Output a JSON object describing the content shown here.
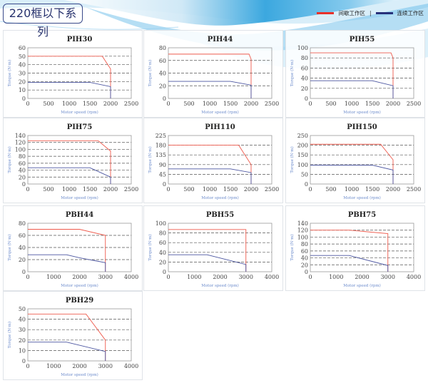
{
  "header": {
    "title": "220框以下系列"
  },
  "legend": {
    "intermittent": {
      "label": "间歇工作区",
      "color": "#e8312a"
    },
    "separator": "|",
    "continuous": {
      "label": "连续工作区",
      "color": "#27307a"
    }
  },
  "colors": {
    "intermittent_line": "#ee5a4c",
    "continuous_line": "#4b55a0",
    "axis_label": "#6d8ccc",
    "grid": "#555555",
    "border": "#999999"
  },
  "chart_data": [
    {
      "type": "line",
      "title": "PIH30",
      "xlabel": "Motor speed (rpm)",
      "ylabel": "Torque (N·m)",
      "xlim": [
        0,
        2500
      ],
      "ylim": [
        0,
        60
      ],
      "xticks": [
        0,
        500,
        1000,
        1500,
        2000,
        2500
      ],
      "yticks": [
        0,
        10,
        20,
        30,
        40,
        50,
        60
      ],
      "grid": true,
      "series": [
        {
          "name": "间歇工作区",
          "points": [
            [
              0,
              50
            ],
            [
              1800,
              50
            ],
            [
              2000,
              35
            ],
            [
              2000,
              0
            ]
          ]
        },
        {
          "name": "连续工作区",
          "points": [
            [
              0,
              19
            ],
            [
              1500,
              19
            ],
            [
              2000,
              14
            ],
            [
              2000,
              0
            ]
          ]
        }
      ]
    },
    {
      "type": "line",
      "title": "PIH44",
      "xlabel": "Motor speed (rpm)",
      "ylabel": "Torque (N·m)",
      "xlim": [
        0,
        2500
      ],
      "ylim": [
        0,
        80
      ],
      "xticks": [
        0,
        500,
        1000,
        1500,
        2000,
        2500
      ],
      "yticks": [
        0,
        20,
        40,
        60,
        80
      ],
      "grid": true,
      "series": [
        {
          "name": "间歇工作区",
          "points": [
            [
              0,
              70
            ],
            [
              1950,
              70
            ],
            [
              2000,
              62
            ],
            [
              2000,
              0
            ]
          ]
        },
        {
          "name": "连续工作区",
          "points": [
            [
              0,
              27
            ],
            [
              1500,
              27
            ],
            [
              2000,
              21
            ],
            [
              2000,
              0
            ]
          ]
        }
      ]
    },
    {
      "type": "line",
      "title": "PIH55",
      "xlabel": "Motor speed (rpm)",
      "ylabel": "Torque (N·m)",
      "xlim": [
        0,
        2500
      ],
      "ylim": [
        0,
        100
      ],
      "xticks": [
        0,
        500,
        1000,
        1500,
        2000,
        2500
      ],
      "yticks": [
        0,
        20,
        40,
        60,
        80,
        100
      ],
      "grid": true,
      "series": [
        {
          "name": "间歇工作区",
          "points": [
            [
              0,
              90
            ],
            [
              1950,
              90
            ],
            [
              2000,
              80
            ],
            [
              2000,
              0
            ]
          ]
        },
        {
          "name": "连续工作区",
          "points": [
            [
              0,
              35
            ],
            [
              1500,
              35
            ],
            [
              2000,
              25
            ],
            [
              2000,
              0
            ]
          ]
        }
      ]
    },
    {
      "type": "line",
      "title": "PIH75",
      "xlabel": "Motor speed (rpm)",
      "ylabel": "Torque (N·m)",
      "xlim": [
        0,
        2500
      ],
      "ylim": [
        0,
        140
      ],
      "xticks": [
        0,
        500,
        1000,
        1500,
        2000,
        2500
      ],
      "yticks": [
        0,
        20,
        40,
        60,
        80,
        100,
        120,
        140
      ],
      "grid": true,
      "series": [
        {
          "name": "间歇工作区",
          "points": [
            [
              0,
              125
            ],
            [
              1700,
              125
            ],
            [
              2000,
              95
            ],
            [
              2000,
              0
            ]
          ]
        },
        {
          "name": "连续工作区",
          "points": [
            [
              0,
              47
            ],
            [
              1500,
              47
            ],
            [
              2000,
              20
            ],
            [
              2000,
              0
            ]
          ]
        }
      ]
    },
    {
      "type": "line",
      "title": "PIH110",
      "xlabel": "Motor speed (rpm)",
      "ylabel": "Torque (N·m)",
      "xlim": [
        0,
        2500
      ],
      "ylim": [
        0,
        225
      ],
      "xticks": [
        0,
        500,
        1000,
        1500,
        2000,
        2500
      ],
      "yticks": [
        0,
        45,
        90,
        135,
        180,
        225
      ],
      "grid": true,
      "series": [
        {
          "name": "间歇工作区",
          "points": [
            [
              0,
              180
            ],
            [
              1700,
              180
            ],
            [
              2000,
              90
            ],
            [
              2000,
              0
            ]
          ]
        },
        {
          "name": "连续工作区",
          "points": [
            [
              0,
              70
            ],
            [
              1500,
              70
            ],
            [
              2000,
              53
            ],
            [
              2000,
              0
            ]
          ]
        }
      ]
    },
    {
      "type": "line",
      "title": "PIH150",
      "xlabel": "Motor speed (rpm)",
      "ylabel": "Torque (N·m)",
      "xlim": [
        0,
        2500
      ],
      "ylim": [
        0,
        250
      ],
      "xticks": [
        0,
        500,
        1000,
        1500,
        2000,
        2500
      ],
      "yticks": [
        0,
        50,
        100,
        150,
        200,
        250
      ],
      "grid": true,
      "series": [
        {
          "name": "间歇工作区",
          "points": [
            [
              0,
              205
            ],
            [
              1700,
              205
            ],
            [
              2000,
              125
            ],
            [
              2000,
              0
            ]
          ]
        },
        {
          "name": "连续工作区",
          "points": [
            [
              0,
              97
            ],
            [
              1500,
              97
            ],
            [
              2000,
              72
            ],
            [
              2000,
              0
            ]
          ]
        }
      ]
    },
    {
      "type": "line",
      "title": "PBH44",
      "xlabel": "Motor speed (rpm)",
      "ylabel": "Torque (N·m)",
      "xlim": [
        0,
        4000
      ],
      "ylim": [
        0,
        80
      ],
      "xticks": [
        0,
        1000,
        2000,
        3000,
        4000
      ],
      "yticks": [
        0,
        20,
        40,
        60,
        80
      ],
      "grid": true,
      "series": [
        {
          "name": "间歇工作区",
          "points": [
            [
              0,
              70
            ],
            [
              2000,
              70
            ],
            [
              3000,
              60
            ],
            [
              3000,
              0
            ]
          ]
        },
        {
          "name": "连续工作区",
          "points": [
            [
              0,
              28
            ],
            [
              1500,
              28
            ],
            [
              2000,
              23
            ],
            [
              3000,
              15
            ],
            [
              3000,
              0
            ]
          ]
        }
      ]
    },
    {
      "type": "line",
      "title": "PBH55",
      "xlabel": "Motor speed (rpm)",
      "ylabel": "Torque (N·m)",
      "xlim": [
        0,
        4000
      ],
      "ylim": [
        0,
        100
      ],
      "xticks": [
        0,
        1000,
        2000,
        3000,
        4000
      ],
      "yticks": [
        0,
        20,
        40,
        60,
        80,
        100
      ],
      "grid": true,
      "series": [
        {
          "name": "间歇工作区",
          "points": [
            [
              0,
              87
            ],
            [
              3000,
              87
            ],
            [
              3000,
              0
            ]
          ]
        },
        {
          "name": "连续工作区",
          "points": [
            [
              0,
              35
            ],
            [
              1500,
              35
            ],
            [
              3000,
              15
            ],
            [
              3000,
              0
            ]
          ]
        }
      ]
    },
    {
      "type": "line",
      "title": "PBH75",
      "xlabel": "Motor speed (rpm)",
      "ylabel": "Torque (N·m)",
      "xlim": [
        0,
        4000
      ],
      "ylim": [
        0,
        140
      ],
      "xticks": [
        0,
        1000,
        2000,
        3000,
        4000
      ],
      "yticks": [
        0,
        20,
        40,
        60,
        80,
        100,
        120,
        140
      ],
      "grid": true,
      "series": [
        {
          "name": "间歇工作区",
          "points": [
            [
              0,
              120
            ],
            [
              1500,
              120
            ],
            [
              3000,
              110
            ],
            [
              3000,
              0
            ]
          ]
        },
        {
          "name": "连续工作区",
          "points": [
            [
              0,
              47
            ],
            [
              1500,
              47
            ],
            [
              3000,
              18
            ],
            [
              3000,
              0
            ]
          ]
        }
      ]
    },
    {
      "type": "line",
      "title": "PBH29",
      "xlabel": "Motor speed (rpm)",
      "ylabel": "Torque (N·m)",
      "xlim": [
        0,
        4000
      ],
      "ylim": [
        0,
        50
      ],
      "xticks": [
        0,
        1000,
        2000,
        3000,
        4000
      ],
      "yticks": [
        0,
        10,
        20,
        30,
        40,
        50
      ],
      "grid": true,
      "series": [
        {
          "name": "间歇工作区",
          "points": [
            [
              0,
              45
            ],
            [
              2250,
              45
            ],
            [
              3000,
              20
            ],
            [
              3000,
              0
            ]
          ]
        },
        {
          "name": "连续工作区",
          "points": [
            [
              0,
              18
            ],
            [
              1500,
              18
            ],
            [
              3000,
              9
            ],
            [
              3000,
              0
            ]
          ]
        }
      ]
    }
  ]
}
